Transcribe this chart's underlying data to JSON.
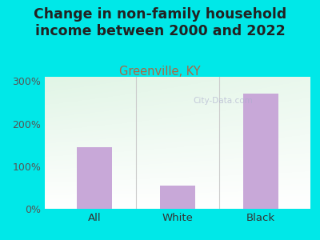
{
  "title": "Change in non-family household\nincome between 2000 and 2022",
  "subtitle": "Greenville, KY",
  "categories": [
    "All",
    "White",
    "Black"
  ],
  "values": [
    145,
    55,
    270
  ],
  "bar_color": "#c8a8d8",
  "title_fontsize": 12.5,
  "title_fontweight": "bold",
  "subtitle_fontsize": 10.5,
  "subtitle_color": "#aa6644",
  "background_outer": "#00e8e8",
  "ylim": [
    0,
    310
  ],
  "yticks": [
    0,
    100,
    200,
    300
  ],
  "ytick_labels": [
    "0%",
    "100%",
    "200%",
    "300%"
  ],
  "watermark": "City-Data.com"
}
